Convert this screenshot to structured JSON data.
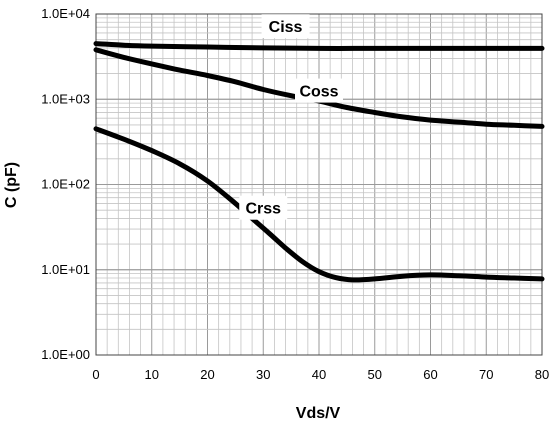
{
  "chart_data": {
    "type": "line",
    "xlabel": "Vds/V",
    "ylabel": "C (pF)",
    "xlim": [
      0,
      80
    ],
    "ylim": [
      1,
      10000
    ],
    "yscale": "log",
    "grid": true,
    "x_ticks": [
      0,
      10,
      20,
      30,
      40,
      50,
      60,
      70,
      80
    ],
    "x_tick_labels": [
      "0",
      "10",
      "20",
      "30",
      "40",
      "50",
      "60",
      "70",
      "80"
    ],
    "y_ticks": [
      1,
      10,
      100,
      1000,
      10000
    ],
    "y_tick_labels": [
      "1.0E+00",
      "1.0E+01",
      "1.0E+02",
      "1.0E+03",
      "1.0E+04"
    ],
    "series": [
      {
        "name": "Ciss",
        "label_x": 34,
        "label_y": 7000,
        "x": [
          0,
          5,
          10,
          20,
          30,
          40,
          50,
          60,
          70,
          80
        ],
        "y": [
          4500,
          4300,
          4200,
          4100,
          4000,
          3950,
          3950,
          3950,
          3950,
          3950
        ]
      },
      {
        "name": "Coss",
        "label_x": 40,
        "label_y": 1230,
        "x": [
          0,
          5,
          10,
          15,
          20,
          25,
          30,
          35,
          40,
          45,
          50,
          55,
          60,
          65,
          70,
          75,
          80
        ],
        "y": [
          3800,
          3100,
          2600,
          2200,
          1900,
          1600,
          1300,
          1100,
          950,
          800,
          700,
          620,
          570,
          540,
          510,
          495,
          480
        ]
      },
      {
        "name": "Crss",
        "label_x": 30,
        "label_y": 52,
        "x": [
          0,
          5,
          10,
          15,
          20,
          25,
          28,
          31,
          34,
          37,
          40,
          43,
          46,
          50,
          55,
          60,
          65,
          70,
          75,
          80
        ],
        "y": [
          450,
          340,
          250,
          175,
          110,
          60,
          40,
          27,
          18,
          12.5,
          9.5,
          8.1,
          7.6,
          7.8,
          8.4,
          8.7,
          8.5,
          8.2,
          8.0,
          7.8
        ]
      }
    ]
  }
}
